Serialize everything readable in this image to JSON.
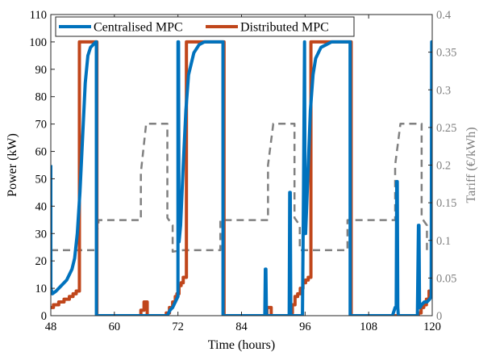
{
  "chart_data": {
    "type": "line",
    "xlabel": "Time (hours)",
    "ylabel": "Power (kW)",
    "y2label": "Tariff (€/kWh)",
    "xlim": [
      48,
      120
    ],
    "ylim": [
      0,
      110
    ],
    "y2lim": [
      0,
      0.4
    ],
    "xticks": [
      48,
      60,
      72,
      84,
      96,
      108,
      120
    ],
    "yticks": [
      0,
      10,
      20,
      30,
      40,
      50,
      60,
      70,
      80,
      90,
      100,
      110
    ],
    "y2ticks": [
      0,
      0.05,
      0.1,
      0.15,
      0.2,
      0.25,
      0.3,
      0.35,
      0.4
    ],
    "y2ticklabels": [
      "0",
      "0.05",
      "0.1",
      "0.15",
      "0.2",
      "0.25",
      "0.3",
      "0.35",
      "0.4"
    ],
    "grid": false,
    "legend": {
      "placement": "top-left",
      "entries": [
        "Centralised MPC",
        "Distributed MPC"
      ]
    },
    "colors": {
      "centralised": "#0072BD",
      "distributed": "#C0461B",
      "tariff": "#808080"
    },
    "series": [
      {
        "name": "Centralised MPC",
        "axis": "left",
        "x": [
          48,
          48.01,
          48.3,
          49,
          50,
          51,
          52,
          52.5,
          53,
          53.5,
          54,
          54.5,
          55,
          55.5,
          56,
          56.5,
          56.6,
          56.61,
          70,
          70.5,
          71,
          71.5,
          72,
          72.01,
          72.02,
          72.1,
          72.11,
          72.2,
          72.21,
          72.5,
          73,
          73.5,
          74,
          75,
          76,
          77,
          78,
          79,
          80,
          80.5,
          80.51,
          88.4,
          88.5,
          88.6,
          88.7,
          93,
          93.1,
          93.2,
          93.3,
          95.5,
          95.7,
          95.9,
          96,
          96.1,
          96.5,
          97,
          97.5,
          98,
          99,
          100,
          101,
          102,
          103,
          104,
          104.5,
          104.51,
          112.5,
          113,
          113.2,
          113.3,
          113.4,
          113.5,
          113.6,
          117.2,
          117.4,
          117.5,
          117.6,
          117.7,
          118,
          118.5,
          119,
          119.5,
          119.8,
          119.9,
          120
        ],
        "y": [
          55,
          10,
          8,
          9,
          11,
          13,
          17,
          21,
          30,
          45,
          65,
          85,
          95,
          98,
          99,
          100,
          100,
          0,
          0,
          2,
          3,
          5,
          7,
          100,
          28,
          28,
          100,
          27,
          27,
          33,
          55,
          75,
          88,
          96,
          99,
          100,
          100,
          100,
          100,
          100,
          0,
          0,
          17,
          17,
          0,
          0,
          45,
          45,
          0,
          0,
          45,
          100,
          30,
          30,
          50,
          75,
          88,
          94,
          98,
          99,
          100,
          100,
          100,
          100,
          100,
          0,
          0,
          3,
          3,
          49,
          49,
          3,
          0,
          0,
          33,
          33,
          3,
          3,
          4,
          5,
          5,
          6,
          7,
          100,
          100
        ]
      },
      {
        "name": "Distributed MPC",
        "axis": "left",
        "x": [
          48,
          48.5,
          48.5,
          49.5,
          49.5,
          50.5,
          50.5,
          51.5,
          51.5,
          52.2,
          52.2,
          52.8,
          52.8,
          53.4,
          53.4,
          56.7,
          56.7,
          65,
          65,
          65.6,
          65.6,
          66.2,
          66.2,
          69.8,
          69.8,
          70.4,
          70.4,
          71,
          71,
          71.5,
          71.5,
          71.8,
          71.8,
          72.2,
          72.2,
          72.6,
          72.6,
          73,
          73,
          73.6,
          73.6,
          74.1,
          74.1,
          80.7,
          80.7,
          88.8,
          88.8,
          89.6,
          89.6,
          93.2,
          93.2,
          93.6,
          93.6,
          94.1,
          94.1,
          94.6,
          94.6,
          95.1,
          95.1,
          95.6,
          95.6,
          96.1,
          96.1,
          96.6,
          96.6,
          97.1,
          97.1,
          97.6,
          97.6,
          104.7,
          104.7,
          117.4,
          117.4,
          117.9,
          117.9,
          118.4,
          118.4,
          118.9,
          118.9,
          119.4,
          119.4,
          120
        ],
        "y": [
          3,
          3,
          4,
          4,
          5,
          5,
          6,
          6,
          7,
          7,
          8,
          8,
          9,
          9,
          100,
          100,
          0,
          0,
          2,
          2,
          5,
          5,
          0,
          0,
          1,
          1,
          3,
          3,
          5,
          5,
          7,
          7,
          8,
          8,
          11,
          11,
          12,
          12,
          14,
          14,
          100,
          100,
          100,
          100,
          0,
          0,
          3,
          3,
          0,
          0,
          1,
          1,
          4,
          4,
          7,
          7,
          8,
          8,
          10,
          10,
          12,
          12,
          13,
          13,
          14,
          14,
          100,
          100,
          100,
          100,
          0,
          0,
          1,
          1,
          3,
          3,
          4,
          4,
          6,
          6,
          9,
          9
        ]
      },
      {
        "name": "Tariff",
        "axis": "right",
        "x": [
          48,
          56.6,
          56.6,
          57,
          57,
          65,
          65,
          66,
          66,
          70,
          70,
          71,
          71,
          73,
          73,
          80,
          80,
          80.6,
          80.6,
          89,
          89,
          90,
          90,
          94,
          94,
          95,
          95,
          97,
          97,
          104,
          104,
          104.6,
          104.6,
          113,
          113,
          114,
          114,
          118,
          118,
          119,
          119,
          120
        ],
        "y": [
          0.087,
          0.087,
          0.11,
          0.12,
          0.127,
          0.127,
          0.19,
          0.255,
          0.255,
          0.255,
          0.13,
          0.12,
          0.085,
          0.087,
          0.087,
          0.087,
          0.127,
          0.127,
          0.127,
          0.127,
          0.2,
          0.255,
          0.255,
          0.255,
          0.13,
          0.12,
          0.087,
          0.087,
          0.087,
          0.087,
          0.127,
          0.127,
          0.127,
          0.127,
          0.2,
          0.255,
          0.255,
          0.255,
          0.13,
          0.12,
          0.087,
          0.087
        ]
      }
    ]
  }
}
